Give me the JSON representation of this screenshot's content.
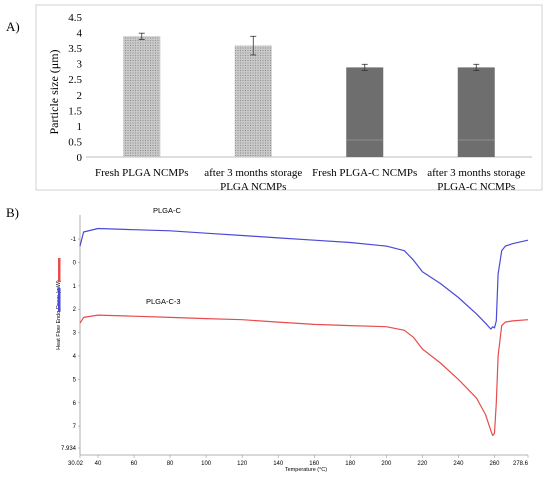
{
  "panels": {
    "a_label": "A)",
    "b_label": "B)"
  },
  "chart_data": [
    {
      "type": "bar",
      "ylabel": "Particle size (μm)",
      "ylim": [
        0,
        4.5
      ],
      "yticks": [
        "0",
        "0.5",
        "1",
        "1.5",
        "2",
        "2.5",
        "3",
        "3.5",
        "4",
        "4.5"
      ],
      "grid": false,
      "categories": [
        [
          "Fresh PLGA NCMPs"
        ],
        [
          "after 3 months storage",
          "PLGA NCMPs"
        ],
        [
          "Fresh PLGA-C NCMPs"
        ],
        [
          "after 3 months storage",
          "PLGA-C NCMPs"
        ]
      ],
      "values": [
        3.88,
        3.58,
        2.88,
        2.88
      ],
      "errors": [
        0.1,
        0.3,
        0.1,
        0.1
      ],
      "colors": {
        "light_bar": "#c9c9c9",
        "dark_bar": "#6e6e6e",
        "frame": "#d0d0d0"
      }
    },
    {
      "type": "line",
      "ylabel": "Heat Flow Endo Down (mW)",
      "xlabel": "Temperature (°C)",
      "xlim": [
        30.02,
        278.6
      ],
      "ylim": [
        -1.6,
        7.934
      ],
      "xticks": [
        "30.02",
        "40",
        "60",
        "80",
        "100",
        "120",
        "140",
        "160",
        "180",
        "200",
        "220",
        "240",
        "260",
        "278.6"
      ],
      "yticks": [
        "-1",
        "0",
        "1",
        "2",
        "3",
        "4",
        "5",
        "6",
        "7",
        "7.934"
      ],
      "series": [
        {
          "name": "PLGA-C",
          "color": "#4a4ad8",
          "x": [
            30.02,
            32,
            40,
            60,
            80,
            100,
            120,
            140,
            160,
            180,
            200,
            210,
            215,
            220,
            230,
            240,
            250,
            255,
            258,
            259,
            260,
            261,
            262,
            264,
            266,
            270,
            278.6
          ],
          "y": [
            -0.7,
            -1.3,
            -1.45,
            -1.4,
            -1.35,
            -1.25,
            -1.15,
            -1.05,
            -0.95,
            -0.85,
            -0.7,
            -0.5,
            -0.1,
            0.4,
            0.9,
            1.5,
            2.2,
            2.6,
            2.85,
            2.75,
            2.8,
            2.5,
            0.5,
            -0.5,
            -0.7,
            -0.8,
            -0.95
          ]
        },
        {
          "name": "PLGA-C-3",
          "color": "#e84c4c",
          "x": [
            30.02,
            32,
            40,
            60,
            80,
            100,
            120,
            140,
            160,
            180,
            200,
            210,
            215,
            220,
            230,
            240,
            250,
            255,
            258,
            259,
            260,
            261,
            262,
            264,
            266,
            270,
            278.6
          ],
          "y": [
            2.6,
            2.35,
            2.25,
            2.3,
            2.35,
            2.4,
            2.45,
            2.55,
            2.65,
            2.7,
            2.75,
            2.9,
            3.2,
            3.7,
            4.3,
            5.0,
            5.8,
            6.5,
            7.2,
            7.4,
            7.3,
            6.0,
            4.0,
            2.7,
            2.55,
            2.5,
            2.45
          ]
        }
      ]
    }
  ]
}
